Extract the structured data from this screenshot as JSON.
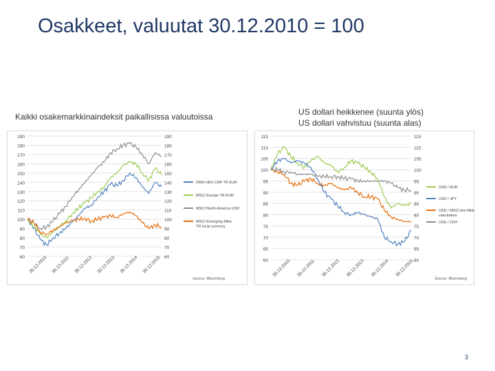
{
  "slide": {
    "title": "Osakkeet, valuutat 30.12.2010 = 100",
    "left_subtitle": "Kaikki osakemarkkinaindeksit paikallisissa valuutoissa",
    "right_subtitle_1": "US dollari heikkenee (suunta ylös)",
    "right_subtitle_2": "US dollari vahvistuu  (suunta alas)",
    "page_number": "3"
  },
  "chart_data": [
    {
      "type": "line",
      "title": "",
      "ylim": [
        60,
        190
      ],
      "y_ticks": [
        60,
        70,
        80,
        90,
        100,
        110,
        120,
        130,
        140,
        150,
        160,
        170,
        180,
        190
      ],
      "x_tick_labels": [
        "30.12.2010",
        "30.12.2011",
        "30.12.2012",
        "30.12.2013",
        "30.12.2014",
        "30.12.2015"
      ],
      "source": "Source: Bloomberg",
      "series": [
        {
          "name": "OMX HEX CAP TR EUR",
          "color": "#4f81bd",
          "values": [
            100,
            90,
            78,
            72,
            80,
            85,
            90,
            97,
            104,
            112,
            115,
            124,
            130,
            138,
            136,
            142,
            150,
            145,
            135,
            128,
            140,
            135
          ]
        },
        {
          "name": "MSCI Europe TR EUR",
          "color": "#9bcb4f",
          "values": [
            100,
            92,
            84,
            80,
            86,
            92,
            98,
            106,
            112,
            118,
            123,
            130,
            135,
            145,
            150,
            158,
            162,
            160,
            150,
            142,
            155,
            148
          ]
        },
        {
          "name": "MSCI North America USD",
          "color": "#8c8c8c",
          "values": [
            100,
            96,
            90,
            92,
            98,
            106,
            114,
            124,
            132,
            140,
            148,
            156,
            162,
            172,
            176,
            180,
            182,
            178,
            170,
            160,
            172,
            168
          ]
        },
        {
          "name": "MSCI Emerging Mkts TR local currency",
          "color": "#e46c0a",
          "values": [
            100,
            96,
            86,
            84,
            88,
            92,
            96,
            98,
            100,
            101,
            98,
            100,
            102,
            104,
            102,
            106,
            108,
            104,
            96,
            90,
            94,
            92
          ]
        }
      ]
    },
    {
      "type": "line",
      "title": "",
      "ylim": [
        60,
        115
      ],
      "y_ticks": [
        60,
        65,
        70,
        75,
        80,
        85,
        90,
        95,
        100,
        105,
        110,
        115
      ],
      "x_tick_labels": [
        "30.12.2010",
        "30.12.2011",
        "30.12.2012",
        "30.12.2013",
        "30.12.2014",
        "30.12.2015"
      ],
      "source": "Source: Bloomberg",
      "series": [
        {
          "name": "USD / EUR",
          "color": "#9bcb4f",
          "values": [
            100,
            107,
            110,
            106,
            103,
            101,
            104,
            106,
            103,
            102,
            99,
            101,
            104,
            103,
            101,
            99,
            96,
            88,
            83,
            85,
            84,
            85
          ]
        },
        {
          "name": "USD / JPY",
          "color": "#4f81bd",
          "values": [
            100,
            104,
            105,
            103,
            104,
            103,
            101,
            96,
            90,
            87,
            84,
            81,
            80,
            81,
            80,
            79,
            78,
            70,
            68,
            67,
            68,
            73
          ]
        },
        {
          "name": "USD / MSCI Em Mkts valuutakori",
          "color": "#e46c0a",
          "values": [
            100,
            99,
            98,
            94,
            93,
            95,
            96,
            94,
            93,
            94,
            92,
            91,
            92,
            90,
            88,
            88,
            87,
            82,
            79,
            78,
            77,
            77
          ]
        },
        {
          "name": "USD / CNY",
          "color": "#8c8c8c",
          "values": [
            100,
            100,
            99,
            99,
            98,
            98,
            98,
            97,
            97,
            97,
            97,
            96,
            96,
            95,
            95,
            95,
            95,
            95,
            94,
            92,
            91,
            91
          ]
        }
      ]
    }
  ]
}
